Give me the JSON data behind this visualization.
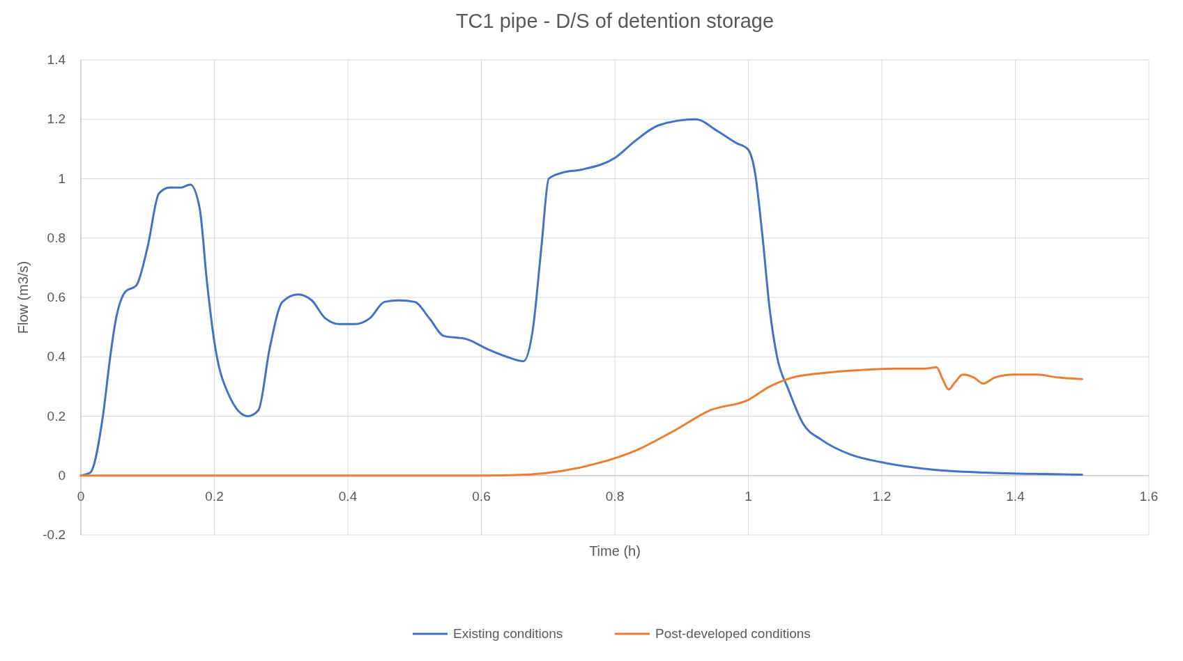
{
  "chart_data": {
    "type": "line",
    "title": "TC1 pipe - D/S of detention storage",
    "xlabel": "Time (h)",
    "ylabel": "Flow (m3/s)",
    "xlim": [
      0,
      1.6
    ],
    "xticks": [
      0,
      0.2,
      0.4,
      0.6,
      0.8,
      1,
      1.2,
      1.4,
      1.6
    ],
    "ylim": [
      -0.2,
      1.4
    ],
    "yticks": [
      -0.2,
      0,
      0.2,
      0.4,
      0.6,
      0.8,
      1,
      1.2,
      1.4
    ],
    "grid": true,
    "legend": "bottom",
    "marker": "none",
    "line_style": "solid",
    "series": [
      {
        "name": "Existing conditions",
        "color": "#4472c4",
        "x": [
          0,
          0.014,
          0.033,
          0.044,
          0.052,
          0.067,
          0.083,
          0.1,
          0.117,
          0.133,
          0.15,
          0.164,
          0.178,
          0.189,
          0.2,
          0.222,
          0.25,
          0.266,
          0.283,
          0.302,
          0.325,
          0.346,
          0.366,
          0.388,
          0.41,
          0.433,
          0.455,
          0.477,
          0.5,
          0.522,
          0.544,
          0.577,
          0.61,
          0.638,
          0.663,
          0.677,
          0.69,
          0.701,
          0.721,
          0.749,
          0.8,
          0.832,
          0.866,
          0.921,
          0.954,
          0.982,
          0.999,
          1.01,
          1.021,
          1.032,
          1.043,
          1.06,
          1.082,
          1.11,
          1.154,
          1.199,
          1.276,
          1.354,
          1.443,
          1.5
        ],
        "values": [
          0,
          0.01,
          0.2,
          0.4,
          0.52,
          0.62,
          0.64,
          0.77,
          0.95,
          0.97,
          0.97,
          0.98,
          0.9,
          0.65,
          0.45,
          0.27,
          0.2,
          0.22,
          0.43,
          0.585,
          0.61,
          0.59,
          0.53,
          0.51,
          0.51,
          0.53,
          0.585,
          0.59,
          0.585,
          0.53,
          0.47,
          0.46,
          0.425,
          0.4,
          0.385,
          0.49,
          0.77,
          1.0,
          1.02,
          1.03,
          1.07,
          1.13,
          1.18,
          1.2,
          1.16,
          1.12,
          1.1,
          1.02,
          0.81,
          0.56,
          0.4,
          0.29,
          0.175,
          0.12,
          0.07,
          0.045,
          0.02,
          0.01,
          0.005,
          0.003
        ]
      },
      {
        "name": "Post-developed conditions",
        "color": "#ed7d31",
        "x": [
          0,
          0.6,
          0.666,
          0.72,
          0.777,
          0.832,
          0.888,
          0.943,
          1.0,
          1.032,
          1.066,
          1.11,
          1.165,
          1.22,
          1.265,
          1.282,
          1.291,
          1.3,
          1.31,
          1.321,
          1.338,
          1.352,
          1.369,
          1.399,
          1.432,
          1.465,
          1.5
        ],
        "values": [
          0,
          0,
          0.003,
          0.015,
          0.043,
          0.085,
          0.15,
          0.22,
          0.255,
          0.3,
          0.33,
          0.345,
          0.355,
          0.36,
          0.36,
          0.365,
          0.325,
          0.29,
          0.315,
          0.34,
          0.33,
          0.31,
          0.33,
          0.34,
          0.34,
          0.33,
          0.325
        ]
      }
    ]
  }
}
